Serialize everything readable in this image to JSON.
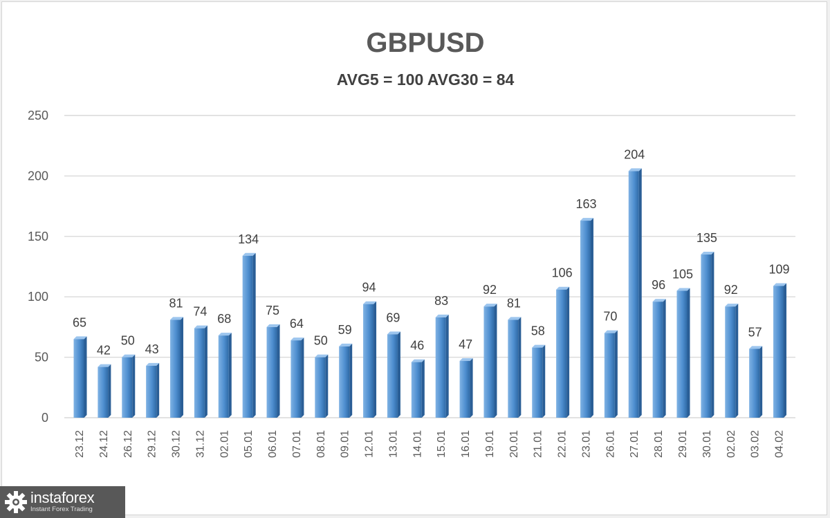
{
  "chart_data": {
    "type": "bar",
    "title": "GBPUSD",
    "subtitle": "AVG5 = 100 AVG30 = 84",
    "xlabel": "",
    "ylabel": "",
    "ylim": [
      0,
      250
    ],
    "yticks": [
      0,
      50,
      100,
      150,
      200,
      250
    ],
    "grid": true,
    "bar_color": "#4f8fd0",
    "data_labels": true,
    "categories": [
      "23.12",
      "24.12",
      "26.12",
      "29.12",
      "30.12",
      "31.12",
      "02.01",
      "05.01",
      "06.01",
      "07.01",
      "08.01",
      "09.01",
      "12.01",
      "13.01",
      "14.01",
      "15.01",
      "16.01",
      "19.01",
      "20.01",
      "21.01",
      "22.01",
      "23.01",
      "26.01",
      "27.01",
      "28.01",
      "29.01",
      "30.01",
      "02.02",
      "03.02",
      "04.02"
    ],
    "values": [
      65,
      42,
      50,
      43,
      81,
      74,
      68,
      134,
      75,
      64,
      50,
      59,
      94,
      69,
      46,
      83,
      47,
      92,
      81,
      58,
      106,
      163,
      70,
      204,
      96,
      105,
      135,
      92,
      57,
      109
    ]
  },
  "logo": {
    "name": "instaforex",
    "tagline": "Instant Forex Trading"
  }
}
